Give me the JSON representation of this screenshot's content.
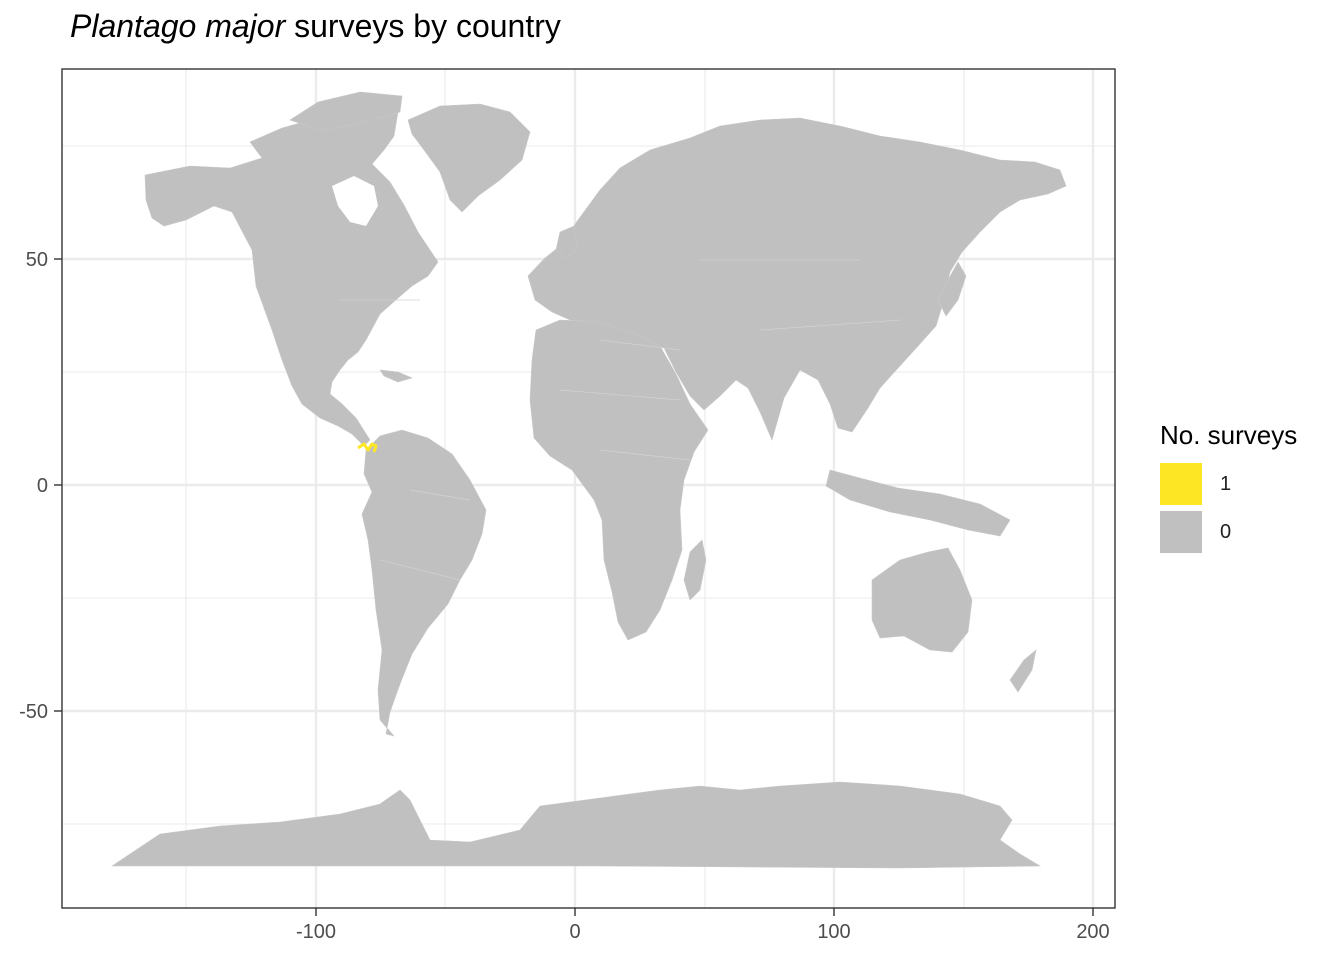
{
  "title": {
    "italic": "Plantago major",
    "rest": " surveys by country"
  },
  "legend": {
    "title": "No. surveys",
    "items": [
      {
        "label": "1",
        "color": "#FDE725"
      },
      {
        "label": "0",
        "color": "#C0C0C0"
      }
    ]
  },
  "axes": {
    "x": {
      "ticks": [
        -100,
        0,
        100,
        200
      ],
      "tick_labels": [
        "-100",
        "0",
        "100",
        "200"
      ],
      "range": [
        -190,
        205
      ]
    },
    "y": {
      "ticks": [
        50,
        0,
        -50
      ],
      "tick_labels": [
        "50",
        "0",
        "-50"
      ],
      "range": [
        -90,
        92
      ]
    }
  },
  "map": {
    "projection": "longitude/latitude (equirectangular)",
    "land_color": "#C0C0C0",
    "highlight_color": "#FDE725",
    "highlighted_countries": [
      {
        "name": "Panama",
        "surveys": 1
      }
    ],
    "other_countries_surveys": 0,
    "panel_background": "#ffffff",
    "grid_color": "#EBEBEB"
  }
}
